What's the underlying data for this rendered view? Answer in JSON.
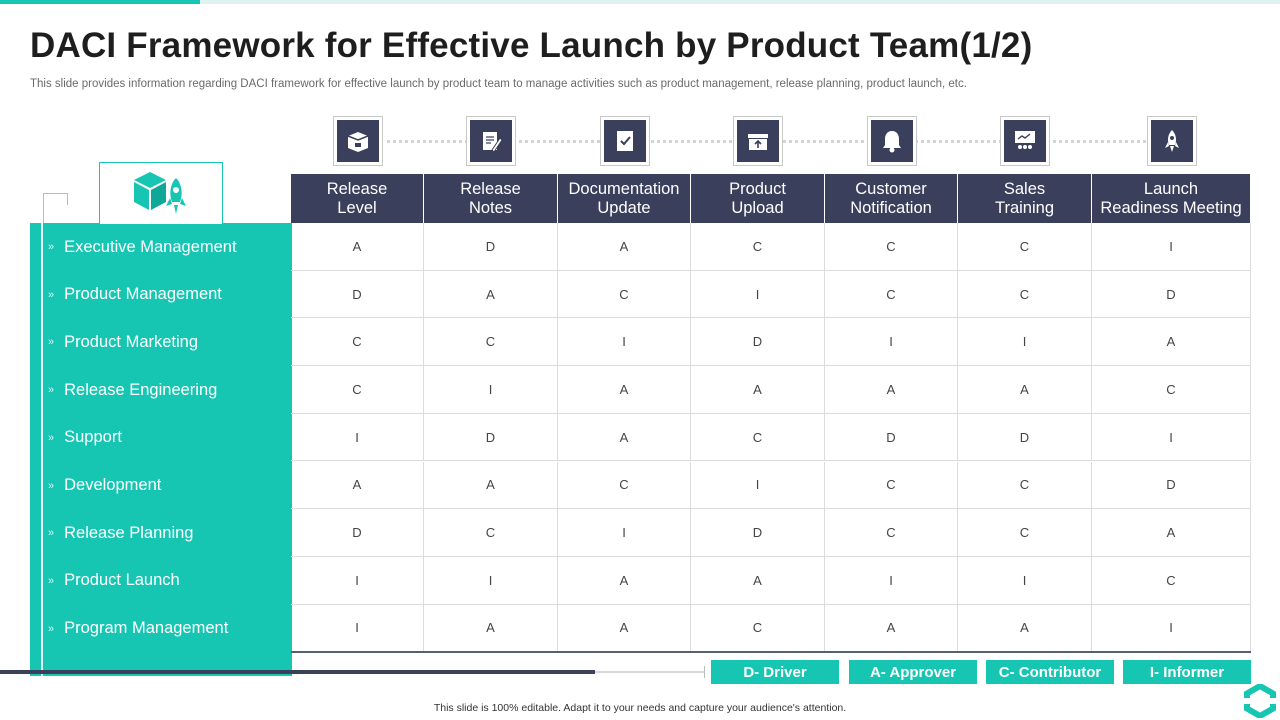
{
  "title": "DACI Framework for Effective Launch by Product Team(1/2)",
  "subtitle": "This slide provides information regarding DACI framework for effective launch by product team to manage activities such as product management, release planning, product launch, etc.",
  "icons": [
    "box-icon",
    "notes-icon",
    "checklist-icon",
    "store-upload-icon",
    "bell-icon",
    "presentation-icon",
    "rocket-icon"
  ],
  "columns": [
    "Release\nLevel",
    "Release\nNotes",
    "Documentation\nUpdate",
    "Product\nUpload",
    "Customer\nNotification",
    "Sales\nTraining",
    "Launch\nReadiness Meeting"
  ],
  "rows": [
    {
      "label": "Executive Management",
      "values": [
        "A",
        "D",
        "A",
        "C",
        "C",
        "C",
        "I"
      ]
    },
    {
      "label": "Product Management",
      "values": [
        "D",
        "A",
        "C",
        "I",
        "C",
        "C",
        "D"
      ]
    },
    {
      "label": "Product Marketing",
      "values": [
        "C",
        "C",
        "I",
        "D",
        "I",
        "I",
        "A"
      ]
    },
    {
      "label": "Release Engineering",
      "values": [
        "C",
        "I",
        "A",
        "A",
        "A",
        "A",
        "C"
      ]
    },
    {
      "label": "Support",
      "values": [
        "I",
        "D",
        "A",
        "C",
        "D",
        "D",
        "I"
      ]
    },
    {
      "label": "Development",
      "values": [
        "A",
        "A",
        "C",
        "I",
        "C",
        "C",
        "D"
      ]
    },
    {
      "label": "Release Planning",
      "values": [
        "D",
        "C",
        "I",
        "D",
        "C",
        "C",
        "A"
      ]
    },
    {
      "label": "Product Launch",
      "values": [
        "I",
        "I",
        "A",
        "A",
        "I",
        "I",
        "C"
      ]
    },
    {
      "label": "Program Management",
      "values": [
        "I",
        "A",
        "A",
        "C",
        "A",
        "A",
        "I"
      ]
    }
  ],
  "legend": [
    "D- Driver",
    "A- Approver",
    "C- Contributor",
    "I- Informer"
  ],
  "footer_note": "This slide is 100% editable. Adapt it to your needs and capture your audience's attention.",
  "colors": {
    "accent": "#16c6b2",
    "header": "#3a3f5c"
  }
}
